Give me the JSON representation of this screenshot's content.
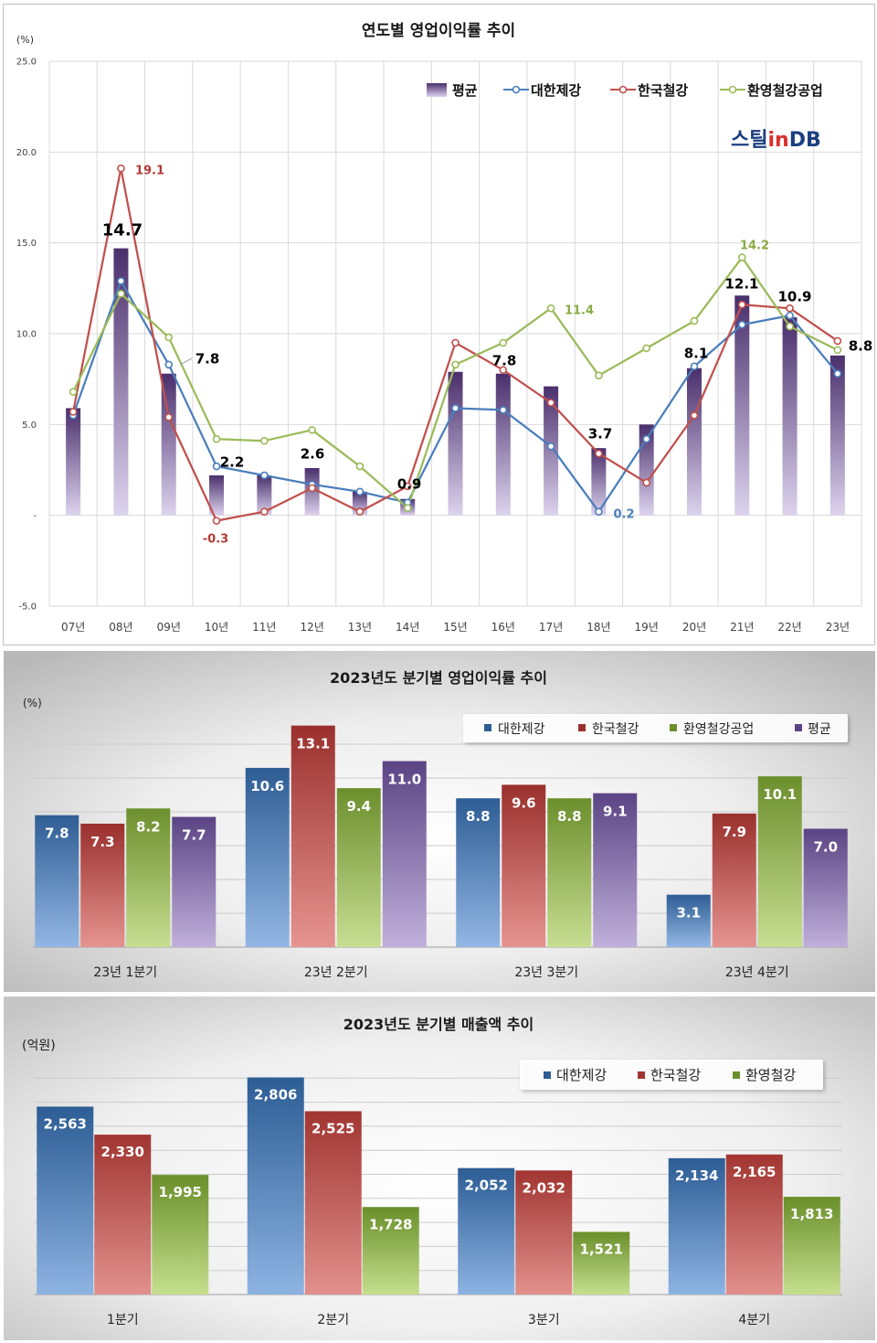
{
  "logo": {
    "part1": "스틸",
    "part2": "in",
    "part3": "DB"
  },
  "chart_data": [
    {
      "type": "bar",
      "title": "연도별 영업이익률 추이",
      "ylabel": "(%)",
      "ylim": [
        -5,
        25
      ],
      "grid": true,
      "legend": "top-right",
      "yticks": [
        {
          "value": 25,
          "label": "25.0"
        },
        {
          "value": 20,
          "label": "20.0"
        },
        {
          "value": 15,
          "label": "15.0"
        },
        {
          "value": 10,
          "label": "10.0"
        },
        {
          "value": 5,
          "label": "5.0"
        },
        {
          "value": 0,
          "label": "-"
        },
        {
          "value": -5,
          "label": "-5.0"
        }
      ],
      "categories": [
        "07년",
        "08년",
        "09년",
        "10년",
        "11년",
        "12년",
        "13년",
        "14년",
        "15년",
        "16년",
        "17년",
        "18년",
        "19년",
        "20년",
        "21년",
        "22년",
        "23년"
      ],
      "series": [
        {
          "name": "평균",
          "type": "bar",
          "color": "#4a2f6c",
          "color_light": "#ddd3ee",
          "values": [
            5.9,
            14.7,
            7.8,
            2.2,
            2.2,
            2.6,
            1.3,
            0.9,
            7.9,
            7.8,
            7.1,
            3.7,
            5.0,
            8.1,
            12.1,
            10.9,
            8.8
          ],
          "labels": [
            null,
            "14.7",
            "7.8",
            "2.2",
            null,
            "2.6",
            null,
            "0.9",
            null,
            "7.8",
            null,
            "3.7",
            null,
            "8.1",
            "12.1",
            "10.9",
            "8.8"
          ]
        },
        {
          "name": "대한제강",
          "type": "line",
          "color": "#4a7ebb",
          "values": [
            5.5,
            12.9,
            8.3,
            2.7,
            2.2,
            1.7,
            1.3,
            0.7,
            5.9,
            5.8,
            3.8,
            0.2,
            4.2,
            8.2,
            10.5,
            11.0,
            7.8
          ],
          "labels": [
            null,
            null,
            null,
            null,
            null,
            null,
            null,
            null,
            null,
            null,
            null,
            "0.2",
            null,
            null,
            null,
            null,
            null
          ]
        },
        {
          "name": "한국철강",
          "type": "line",
          "color": "#c0504d",
          "values": [
            5.7,
            19.1,
            5.4,
            -0.3,
            0.2,
            1.5,
            0.2,
            1.6,
            9.5,
            8.0,
            6.2,
            3.4,
            1.8,
            5.5,
            11.6,
            11.4,
            9.6
          ],
          "labels": [
            null,
            "19.1",
            null,
            "-0.3",
            null,
            null,
            null,
            null,
            null,
            null,
            null,
            null,
            null,
            null,
            null,
            null,
            null
          ]
        },
        {
          "name": "환영철강공업",
          "type": "line",
          "color": "#9bbb59",
          "values": [
            6.8,
            12.2,
            9.8,
            4.2,
            4.1,
            4.7,
            2.7,
            0.4,
            8.3,
            9.5,
            11.4,
            7.7,
            9.2,
            10.7,
            14.2,
            10.4,
            9.1
          ],
          "labels": [
            null,
            null,
            null,
            null,
            null,
            null,
            null,
            null,
            null,
            null,
            "11.4",
            null,
            null,
            null,
            "14.2",
            null,
            null
          ]
        }
      ]
    },
    {
      "type": "bar",
      "title": "2023년도 분기별 영업이익률 추이",
      "ylabel": "(%)",
      "ylim": [
        0,
        14
      ],
      "grid": true,
      "legend": "top-right",
      "categories": [
        "23년 1분기",
        "23년 2분기",
        "23년 3분기",
        "23년 4분기"
      ],
      "series": [
        {
          "name": "대한제강",
          "color": "#2e5d94",
          "color_light": "#93b7e4",
          "values": [
            7.8,
            10.6,
            8.8,
            3.1
          ],
          "labels": [
            "7.8",
            "10.6",
            "8.8",
            "3.1"
          ]
        },
        {
          "name": "한국철강",
          "color": "#9a302d",
          "color_light": "#e69490",
          "values": [
            7.3,
            13.1,
            9.6,
            7.9
          ],
          "labels": [
            "7.3",
            "13.1",
            "9.6",
            "7.9"
          ]
        },
        {
          "name": "환영철강공업",
          "color": "#6c8f2d",
          "color_light": "#c7de92",
          "values": [
            8.2,
            9.4,
            8.8,
            10.1
          ],
          "labels": [
            "8.2",
            "9.4",
            "8.8",
            "10.1"
          ]
        },
        {
          "name": "평균",
          "color": "#5b4484",
          "color_light": "#c0b0db",
          "values": [
            7.7,
            11.0,
            9.1,
            7.0
          ],
          "labels": [
            "7.7",
            "11.0",
            "9.1",
            "7.0"
          ]
        }
      ]
    },
    {
      "type": "bar",
      "title": "2023년도 분기별 매출액 추이",
      "ylabel": "(억원)",
      "ylim": [
        1000,
        3000
      ],
      "grid": true,
      "legend": "top-right",
      "categories": [
        "1분기",
        "2분기",
        "3분기",
        "4분기"
      ],
      "series": [
        {
          "name": "대한제강",
          "color": "#2c5d94",
          "color_light": "#8db3e2",
          "values": [
            2563,
            2806,
            2052,
            2134
          ],
          "labels": [
            "2,563",
            "2,806",
            "2,052",
            "2,134"
          ]
        },
        {
          "name": "한국철강",
          "color": "#a13531",
          "color_light": "#e1908c",
          "values": [
            2330,
            2525,
            2032,
            2165
          ],
          "labels": [
            "2,330",
            "2,525",
            "2,032",
            "2,165"
          ]
        },
        {
          "name": "환영철강",
          "color": "#6a8f2a",
          "color_light": "#c5df8e",
          "values": [
            1995,
            1728,
            1521,
            1813
          ],
          "labels": [
            "1,995",
            "1,728",
            "1,521",
            "1,813"
          ]
        }
      ]
    }
  ]
}
